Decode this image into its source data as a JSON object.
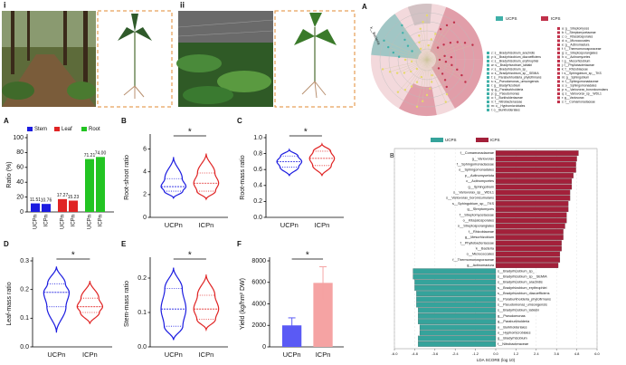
{
  "photos": [
    {
      "label": "i"
    },
    {
      "label": "ii"
    }
  ],
  "cladogram": {
    "panel": "A",
    "root_label": "k__Bacteria",
    "legend": [
      {
        "name": "UCPS",
        "color": "#3fb0a8"
      },
      {
        "name": "ICPS",
        "color": "#c0304a"
      }
    ],
    "ucps_taxa": [
      "z: s__Bradyrhizobium_arachidis",
      "y: k__Bradyrhizobium_diazoefficiens",
      "x: s__Bradyrhizobium_erythrophlei",
      "w: s__Bradyrhizobium_lablabi",
      "v: s__Bradyrhizobium_sp_",
      "u: s__Bradyrhizobium_sp__SEMIA",
      "t: s__Paraburkholderia_phytofirmans",
      "s: s__Pseudomonas_umsongensis",
      "r: g__Bradyrhizobium",
      "q: g__Paraburkholderia",
      "p: g__Pseudomonas",
      "o: f__Burkholderiaceae",
      "n: f__Nitrobacteraceae",
      "m: o__Hyphomicrobiales",
      "l: o__Burkholderiales"
    ],
    "icps_taxa": [
      "a: g__Streptomyces",
      "b: f__Streptomycetaceae",
      "c: o__Kitasatosporales",
      "d: o__Micrococcales",
      "e: g__Actinomadura",
      "f: f__Thermomonosporaceae",
      "g: o__Streptosporangiales",
      "h: c__Actinomycetes",
      "i: g__Mesorhizobium",
      "j: f__Phyllobacteriaceae",
      "k: f__Rhizobiaceae",
      "l: s__Sphingobium_sp__TKS",
      "m: g__Sphingobium",
      "n: f__Sphingomonadaceae",
      "o: o__Sphingomonadales",
      "p: s__Variovorax_boronicumulans",
      "q: s__Variovorax_sp__WDL1",
      "r: g__Variovorax",
      "s: f__Comamonadaceae"
    ]
  },
  "chart_data": [
    {
      "type": "grouped_bar",
      "panel": "A",
      "y_label": "Ratio (%)",
      "categories": [
        "UCPn",
        "ICPn"
      ],
      "series": [
        {
          "name": "Stem",
          "color": "#1c1ce0",
          "values": [
            11.51,
            10.76
          ],
          "value_labels": [
            "11.51",
            "10.76"
          ]
        },
        {
          "name": "Leaf",
          "color": "#e02424",
          "values": [
            17.27,
            15.23
          ],
          "value_labels": [
            "17.27",
            "15.23"
          ]
        },
        {
          "name": "Root",
          "color": "#22c422",
          "values": [
            71.21,
            74.0
          ],
          "value_labels": [
            "71.21",
            "74.00"
          ]
        }
      ],
      "ylim": [
        0,
        100
      ],
      "yticks": [
        0,
        20,
        40,
        60,
        80,
        100
      ]
    },
    {
      "type": "violin",
      "panel": "B",
      "y_label": "Root-shoot ratio",
      "significance": "*",
      "categories": [
        "UCPn",
        "ICPn"
      ],
      "colors": [
        "#1c1ce0",
        "#e02424"
      ],
      "min": [
        1.7,
        1.6
      ],
      "q1": [
        2.3,
        2.3
      ],
      "median": [
        2.7,
        3.0
      ],
      "q3": [
        3.4,
        3.9
      ],
      "max": [
        5.3,
        5.6
      ],
      "ylim": [
        0,
        7
      ],
      "yticks": [
        0,
        2,
        4,
        6
      ]
    },
    {
      "type": "violin",
      "panel": "C",
      "y_label": "Root-mass ratio",
      "significance": "*",
      "categories": [
        "UCPn",
        "ICPn"
      ],
      "colors": [
        "#1c1ce0",
        "#e02424"
      ],
      "min": [
        0.52,
        0.52
      ],
      "q1": [
        0.63,
        0.65
      ],
      "median": [
        0.7,
        0.74
      ],
      "q3": [
        0.77,
        0.83
      ],
      "max": [
        0.85,
        0.92
      ],
      "ylim": [
        0,
        1.0
      ],
      "yticks": [
        {
          "value": 0,
          "label": "0.0"
        },
        0.2,
        0.4,
        0.6,
        0.8,
        {
          "value": 1,
          "label": "1.0"
        }
      ]
    },
    {
      "type": "violin",
      "panel": "D",
      "y_label": "Leaf-mass ratio",
      "significance": "*",
      "categories": [
        "UCPn",
        "ICPn"
      ],
      "colors": [
        "#1c1ce0",
        "#e02424"
      ],
      "min": [
        0.05,
        0.08
      ],
      "q1": [
        0.14,
        0.12
      ],
      "median": [
        0.19,
        0.14
      ],
      "q3": [
        0.22,
        0.17
      ],
      "max": [
        0.28,
        0.23
      ],
      "ylim": [
        0,
        0.3
      ],
      "yticks": [
        {
          "value": 0,
          "label": "0.0"
        },
        0.1,
        0.2,
        0.3
      ]
    },
    {
      "type": "violin",
      "panel": "E",
      "y_label": "Stem-mass ratio",
      "significance": "*",
      "categories": [
        "UCPn",
        "ICPn"
      ],
      "colors": [
        "#1c1ce0",
        "#e02424"
      ],
      "min": [
        0.02,
        0.05
      ],
      "q1": [
        0.06,
        0.08
      ],
      "median": [
        0.11,
        0.11
      ],
      "q3": [
        0.17,
        0.15
      ],
      "max": [
        0.23,
        0.21
      ],
      "ylim": [
        0,
        0.25
      ],
      "yticks": [
        {
          "value": 0,
          "label": "0.0"
        },
        0.1,
        0.2
      ]
    },
    {
      "type": "bar",
      "panel": "F",
      "y_label": "Yield (kg/hm² DW)",
      "significance": "*",
      "categories": [
        "UCPn",
        "ICPn"
      ],
      "colors": [
        "#5a5af5",
        "#f5a3a3"
      ],
      "values": [
        2000,
        5950
      ],
      "errors": [
        700,
        1500
      ],
      "ylim": [
        0,
        8000
      ],
      "yticks": [
        0,
        2000,
        4000,
        6000,
        8000
      ]
    },
    {
      "type": "lda",
      "panel": "B",
      "x_label": "LDA SCORE (log 10)",
      "series": [
        {
          "name": "ICPS",
          "color": "#a3203a",
          "categories": [
            "f__Comamonadaceae",
            "g__Variovorax",
            "f__Sphingomonadaceae",
            "o__Sphingomonadales",
            "p__Actinomycetota",
            "c__Actinomycetes",
            "g__Sphingobium",
            "s__Variovorax_sp__WDL1",
            "s__Variovorax_boronicumulans",
            "s__Sphingobium_sp__TKS",
            "g__Streptomyces",
            "f__Streptomycetaceae",
            "o__Kitasatosporales",
            "o__Streptosporangiales",
            "f__Rhizobiaceae",
            "g__Mesorhizobium",
            "f__Phyllobacteriaceae",
            "k__Bacteria",
            "o__Micrococcales",
            "f__Thermomonosporaceae",
            "g__Actinomadura"
          ],
          "values": [
            4.9,
            4.8,
            4.75,
            4.75,
            4.6,
            4.5,
            4.5,
            4.4,
            4.4,
            4.3,
            4.3,
            4.2,
            4.2,
            4.1,
            4.0,
            4.0,
            3.9,
            3.9,
            3.8,
            3.8,
            3.7
          ]
        },
        {
          "name": "UCPS",
          "color": "#35a39b",
          "categories": [
            "s__Bradyrhizobium_sp_",
            "s__Bradyrhizobium_sp__SEMIA",
            "s__Bradyrhizobium_arachidis",
            "s__Bradyrhizobium_erythrophlei",
            "s__Bradyrhizobium_diazoefficiens",
            "s__Paraburkholderia_phytofirmans",
            "s__Pseudomonas_umsongensis",
            "s__Bradyrhizobium_lablabi",
            "g__Pseudomonas",
            "g__Paraburkholderia",
            "o__Burkholderiales",
            "o__Hyphomicrobiales",
            "g__Bradyrhizobium",
            "f__Nitrobacteraceae"
          ],
          "values": [
            -4.9,
            -4.9,
            -4.8,
            -4.8,
            -4.7,
            -4.7,
            -4.7,
            -4.6,
            -4.6,
            -4.6,
            -4.5,
            -4.5,
            -4.6,
            -4.6
          ]
        }
      ],
      "xlim": [
        -6,
        6
      ],
      "xticks": [
        {
          "value": -6,
          "label": "-6.0"
        },
        -4.8,
        -3.6,
        -2.4,
        -1.2,
        {
          "value": 0,
          "label": "0.0"
        },
        1.2,
        2.4,
        3.6,
        4.8,
        {
          "value": 6,
          "label": "6.0"
        }
      ]
    }
  ]
}
